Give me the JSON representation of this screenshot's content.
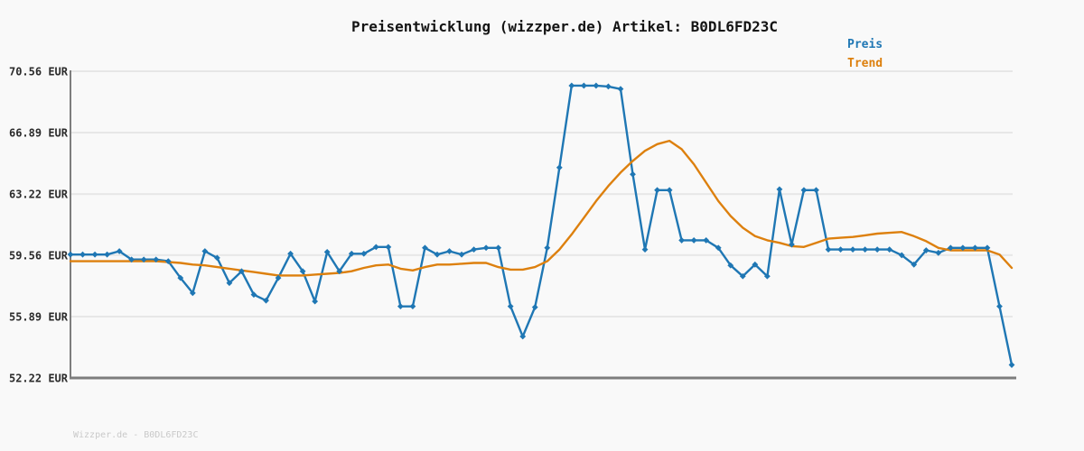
{
  "header": {
    "title": "Preisentwicklung (wizzper.de) Artikel: B0DL6FD23C"
  },
  "legend": {
    "items": [
      {
        "label": "Preis",
        "color": "#1f77b4"
      },
      {
        "label": "Trend",
        "color": "#dd800e"
      }
    ]
  },
  "footer": {
    "watermark": "Wizzper.de - B0DL6FD23C"
  },
  "colors": {
    "background": "#f9f9f9",
    "gridline": "#e7e7e7",
    "axis": "#7d7d7d",
    "title_text": "#141414",
    "tick_text": "#2b2b2b",
    "watermark_text": "#c9c9c9"
  },
  "chart_data": {
    "type": "line",
    "title": "Preisentwicklung (wizzper.de) Artikel: B0DL6FD23C",
    "xlabel": "",
    "ylabel": "EUR",
    "ylim": [
      52.22,
      70.56
    ],
    "y_ticks": [
      70.56,
      66.89,
      63.22,
      59.56,
      55.89,
      52.22
    ],
    "y_tick_labels": [
      "70.56 EUR",
      "66.89 EUR",
      "63.22 EUR",
      "59.56 EUR",
      "55.89 EUR",
      "52.22 EUR"
    ],
    "x_tick_labels": [],
    "grid": true,
    "legend_position": "top-right",
    "series": [
      {
        "name": "Preis",
        "color": "#1f77b4",
        "marker": "diamond",
        "values": [
          59.6,
          59.6,
          59.6,
          59.6,
          59.8,
          59.3,
          59.3,
          59.3,
          59.2,
          58.2,
          57.3,
          59.8,
          59.4,
          57.9,
          58.6,
          57.2,
          56.85,
          58.2,
          59.65,
          58.6,
          56.8,
          59.75,
          58.6,
          59.65,
          59.65,
          60.05,
          60.05,
          56.5,
          56.5,
          60.0,
          59.6,
          59.8,
          59.6,
          59.9,
          60.0,
          60.0,
          56.5,
          54.7,
          56.45,
          60.0,
          64.8,
          69.7,
          69.7,
          69.7,
          69.65,
          69.5,
          64.4,
          59.9,
          63.45,
          63.45,
          60.45,
          60.45,
          60.45,
          60.0,
          58.95,
          58.3,
          59.0,
          58.3,
          63.5,
          60.2,
          63.45,
          63.45,
          59.9,
          59.9,
          59.9,
          59.9,
          59.9,
          59.9,
          59.56,
          59.0,
          59.85,
          59.7,
          60.0,
          60.0,
          60.0,
          60.0,
          56.5,
          53.0
        ]
      },
      {
        "name": "Trend",
        "color": "#dd800e",
        "marker": "none",
        "values": [
          59.2,
          59.2,
          59.2,
          59.2,
          59.2,
          59.2,
          59.2,
          59.2,
          59.15,
          59.1,
          59.0,
          58.95,
          58.85,
          58.75,
          58.65,
          58.55,
          58.45,
          58.35,
          58.35,
          58.35,
          58.4,
          58.45,
          58.5,
          58.6,
          58.8,
          58.95,
          59.0,
          58.75,
          58.65,
          58.85,
          59.0,
          59.0,
          59.05,
          59.1,
          59.1,
          58.85,
          58.7,
          58.7,
          58.85,
          59.2,
          59.9,
          60.8,
          61.8,
          62.8,
          63.7,
          64.5,
          65.2,
          65.8,
          66.2,
          66.4,
          65.9,
          65.0,
          63.9,
          62.8,
          61.9,
          61.2,
          60.7,
          60.45,
          60.3,
          60.1,
          60.05,
          60.3,
          60.55,
          60.6,
          60.65,
          60.75,
          60.85,
          60.9,
          60.95,
          60.7,
          60.4,
          60.0,
          59.85,
          59.85,
          59.85,
          59.85,
          59.6,
          58.8
        ]
      }
    ]
  }
}
